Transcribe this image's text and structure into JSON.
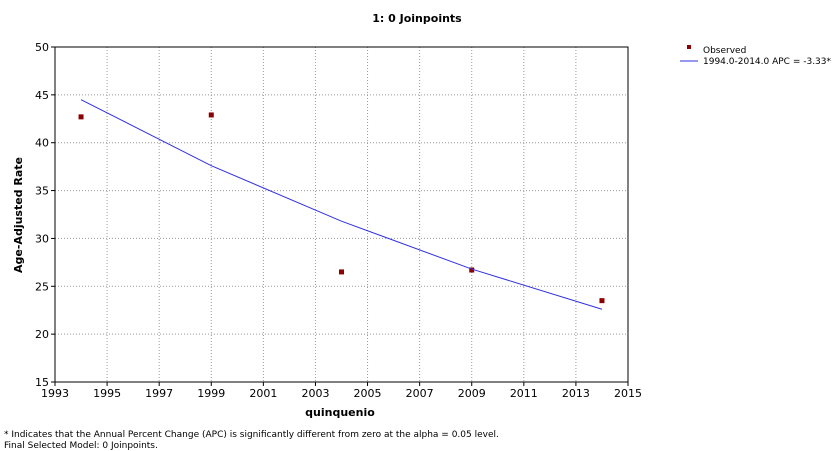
{
  "chart_data": {
    "type": "joinpoint",
    "title": "1: 0 Joinpoints",
    "x_label": "quinquenio",
    "y_label": "Age-Adjusted Rate",
    "xlim": [
      1993,
      2015
    ],
    "xticks": [
      1993,
      1995,
      1997,
      1999,
      2001,
      2003,
      2005,
      2007,
      2009,
      2011,
      2013,
      2015
    ],
    "ylim": [
      15,
      50
    ],
    "yticks": [
      15,
      20,
      25,
      30,
      35,
      40,
      45,
      50
    ],
    "grid": true,
    "legend": "right",
    "series": [
      {
        "name": "Observed",
        "style": "marker",
        "color": "#8b0000",
        "x": [
          1994,
          1999,
          2004,
          2009,
          2014
        ],
        "values": [
          42.7,
          42.9,
          26.5,
          26.7,
          23.5
        ]
      },
      {
        "name": "1994.0-2014.0 APC  = -3.33*",
        "style": "line",
        "color": "#3030e0",
        "x": [
          1994,
          1999,
          2004,
          2009,
          2014
        ],
        "values": [
          44.5,
          37.6,
          31.8,
          26.8,
          22.6
        ]
      }
    ],
    "footnotes": [
      "* Indicates that the Annual Percent Change (APC) is significantly different from zero at the alpha = 0.05 level.",
      "Final Selected Model: 0 Joinpoints."
    ]
  }
}
